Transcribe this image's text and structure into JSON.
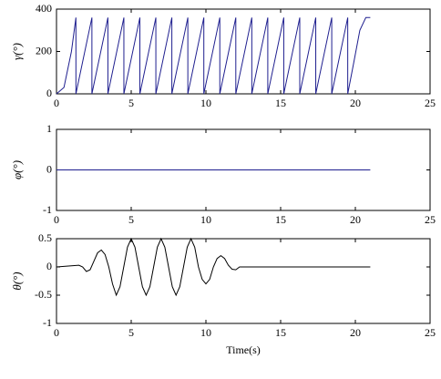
{
  "chart_data": [
    {
      "type": "line",
      "ylabel": "γ(°)",
      "color": "#1f1f8f",
      "xlim": [
        0,
        25
      ],
      "xticks": [
        0,
        5,
        10,
        15,
        20,
        25
      ],
      "ylim": [
        0,
        400
      ],
      "yticks": [
        0,
        200,
        400
      ],
      "x": [
        0,
        0.5,
        1,
        1.3,
        1.3,
        2.37,
        2.37,
        3.44,
        3.44,
        4.51,
        4.51,
        5.58,
        5.58,
        6.65,
        6.65,
        7.72,
        7.72,
        8.79,
        8.79,
        9.86,
        9.86,
        10.93,
        10.93,
        12,
        12,
        13.07,
        13.07,
        14.14,
        14.14,
        15.21,
        15.21,
        16.28,
        16.28,
        17.35,
        17.35,
        18.42,
        18.42,
        19.49,
        19.49,
        19.9,
        20.3,
        20.7,
        21
      ],
      "values": [
        0,
        30,
        200,
        360,
        0,
        360,
        0,
        360,
        0,
        360,
        0,
        360,
        0,
        360,
        0,
        360,
        0,
        360,
        0,
        360,
        0,
        360,
        0,
        360,
        0,
        360,
        0,
        360,
        0,
        360,
        0,
        360,
        0,
        360,
        0,
        360,
        0,
        360,
        0,
        150,
        300,
        360,
        360
      ]
    },
    {
      "type": "line",
      "ylabel": "φ(°)",
      "color": "#1f1f8f",
      "xlim": [
        0,
        25
      ],
      "xticks": [
        0,
        5,
        10,
        15,
        20,
        25
      ],
      "ylim": [
        -1,
        1
      ],
      "yticks": [
        -1,
        0,
        1
      ],
      "x": [
        0,
        21
      ],
      "values": [
        0,
        0
      ]
    },
    {
      "type": "line",
      "ylabel": "θ(°)",
      "xlabel": "Time(s)",
      "color": "#000000",
      "xlim": [
        0,
        25
      ],
      "xticks": [
        0,
        5,
        10,
        15,
        20,
        25
      ],
      "ylim": [
        -1,
        0.5
      ],
      "yticks": [
        -1,
        -0.5,
        0,
        0.5
      ],
      "x": [
        0,
        1,
        1.5,
        1.75,
        2,
        2.25,
        2.5,
        2.75,
        3,
        3.25,
        3.5,
        3.75,
        4,
        4.25,
        4.5,
        4.75,
        5,
        5.25,
        5.5,
        5.75,
        6,
        6.25,
        6.5,
        6.75,
        7,
        7.25,
        7.5,
        7.75,
        8,
        8.25,
        8.5,
        8.75,
        9,
        9.25,
        9.5,
        9.75,
        10,
        10.25,
        10.5,
        10.75,
        11,
        11.25,
        11.5,
        11.75,
        12,
        12.25,
        21
      ],
      "values": [
        0,
        0.02,
        0.03,
        0,
        -0.08,
        -0.05,
        0.1,
        0.25,
        0.3,
        0.22,
        0,
        -0.3,
        -0.5,
        -0.35,
        0,
        0.35,
        0.5,
        0.35,
        0,
        -0.35,
        -0.5,
        -0.35,
        0,
        0.35,
        0.5,
        0.35,
        0,
        -0.35,
        -0.5,
        -0.35,
        0,
        0.35,
        0.5,
        0.35,
        0,
        -0.22,
        -0.3,
        -0.22,
        0,
        0.15,
        0.2,
        0.15,
        0.03,
        -0.04,
        -0.05,
        0,
        0
      ]
    }
  ]
}
